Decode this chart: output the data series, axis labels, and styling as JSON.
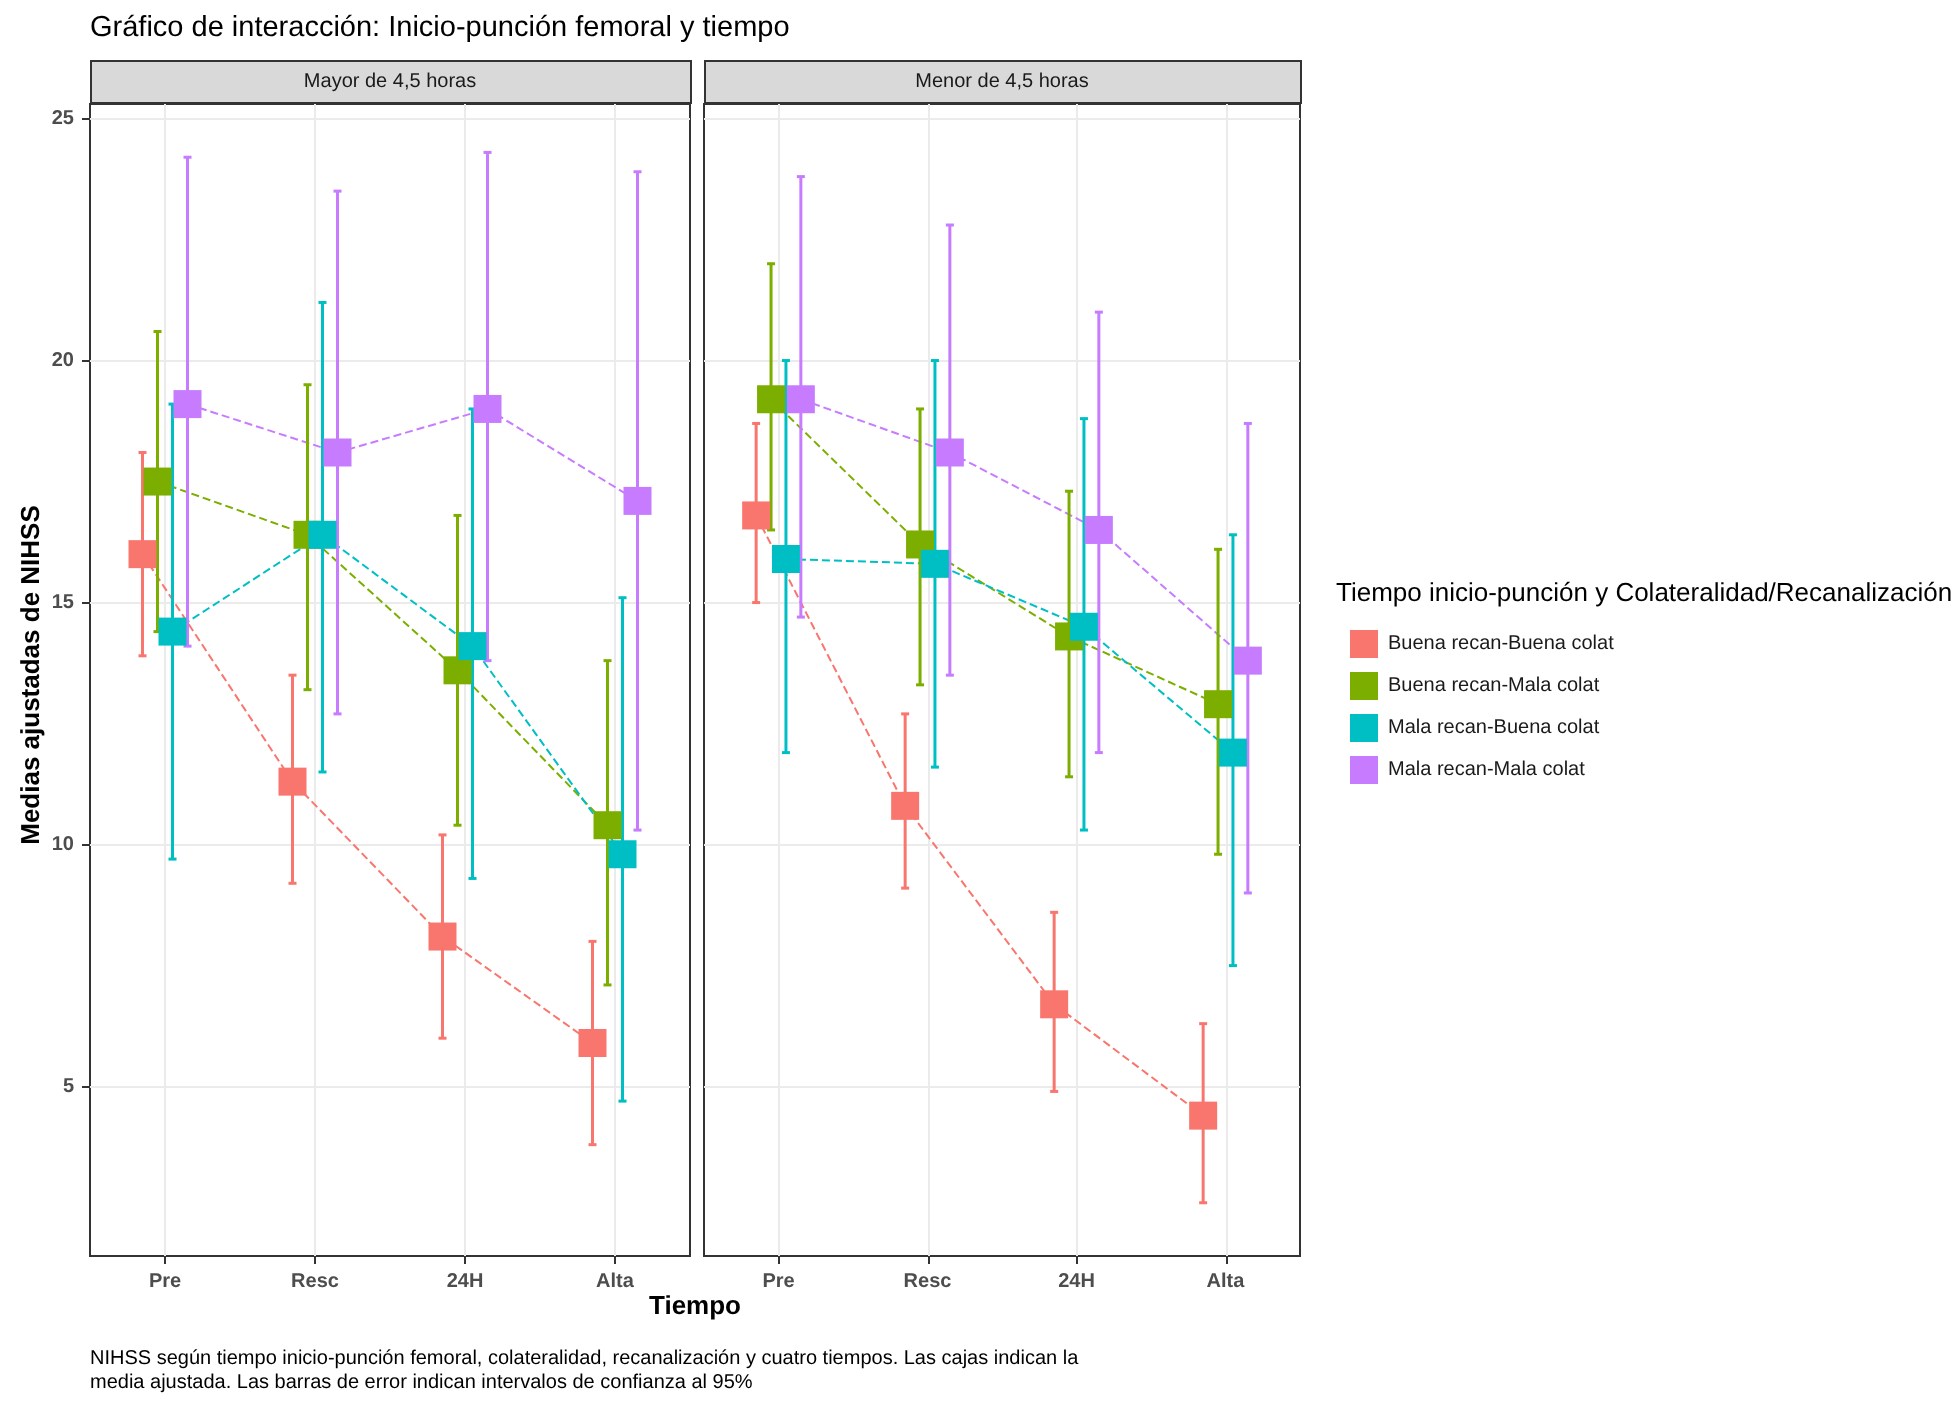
{
  "chart_data": [
    {
      "type": "line",
      "title": "Gráfico de interacción: Inicio-punción femoral y tiempo",
      "subtitle": "Mayor de 4,5 horas",
      "xlabel": "Tiempo",
      "ylabel": "Medias ajustadas de NIHSS",
      "annotations": [
        "NIHSS según tiempo inicio-punción femoral, colateralidad, recanalización y cuatro tiempos. Las cajas indican la media ajustada. Las barras de error indican intervalos de confianza al 95%"
      ],
      "categories": [
        "Pre",
        "Resc",
        "24H",
        "Alta"
      ],
      "ylim": [
        1.5,
        25.3
      ],
      "yticks": [
        5,
        10,
        15,
        20,
        25
      ],
      "grid": true,
      "marker": "square",
      "line_style": "dashed",
      "legend": false,
      "series": [
        {
          "color": "#f8766d",
          "values": [
            16.0,
            11.3,
            8.1,
            5.9
          ],
          "errors": [
            [
              13.9,
              18.1
            ],
            [
              9.2,
              13.5
            ],
            [
              6.0,
              10.2
            ],
            [
              3.8,
              8.0
            ]
          ]
        },
        {
          "color": "#7cae00",
          "values": [
            17.5,
            16.4,
            13.6,
            10.4
          ],
          "errors": [
            [
              14.4,
              20.6
            ],
            [
              13.2,
              19.5
            ],
            [
              10.4,
              16.8
            ],
            [
              7.1,
              13.8
            ]
          ]
        },
        {
          "color": "#00bfc4",
          "values": [
            14.4,
            16.4,
            14.1,
            9.8
          ],
          "errors": [
            [
              9.7,
              19.1
            ],
            [
              11.5,
              21.2
            ],
            [
              9.3,
              19.0
            ],
            [
              4.7,
              15.1
            ]
          ]
        },
        {
          "color": "#c77cff",
          "values": [
            19.1,
            18.1,
            19.0,
            17.1
          ],
          "errors": [
            [
              14.1,
              24.2
            ],
            [
              12.7,
              23.5
            ],
            [
              13.8,
              24.3
            ],
            [
              10.3,
              23.9
            ]
          ]
        }
      ]
    },
    {
      "type": "line",
      "subtitle": "Menor de 4,5 horas",
      "categories": [
        "Pre",
        "Resc",
        "24H",
        "Alta"
      ],
      "ylim": [
        1.5,
        25.3
      ],
      "yticks": [
        5,
        10,
        15,
        20,
        25
      ],
      "tick_labels": "x",
      "grid": true,
      "marker": "square",
      "line_style": "dashed",
      "legend": "right",
      "legend_title": "Tiempo inicio-punción y Colateralidad/Recanalización",
      "series": [
        {
          "name": "Buena recan-Buena colat",
          "color": "#f8766d",
          "values": [
            16.8,
            10.8,
            6.7,
            4.4
          ],
          "errors": [
            [
              15.0,
              18.7
            ],
            [
              9.1,
              12.7
            ],
            [
              4.9,
              8.6
            ],
            [
              2.6,
              6.3
            ]
          ]
        },
        {
          "name": "Buena recan-Mala colat",
          "color": "#7cae00",
          "values": [
            19.2,
            16.2,
            14.3,
            12.9
          ],
          "errors": [
            [
              16.5,
              22.0
            ],
            [
              13.3,
              19.0
            ],
            [
              11.4,
              17.3
            ],
            [
              9.8,
              16.1
            ]
          ]
        },
        {
          "name": "Mala recan-Buena colat",
          "color": "#00bfc4",
          "values": [
            15.9,
            15.8,
            14.5,
            11.9
          ],
          "errors": [
            [
              11.9,
              20.0
            ],
            [
              11.6,
              20.0
            ],
            [
              10.3,
              18.8
            ],
            [
              7.5,
              16.4
            ]
          ]
        },
        {
          "name": "Mala recan-Mala colat",
          "color": "#c77cff",
          "values": [
            19.2,
            18.1,
            16.5,
            13.8
          ],
          "errors": [
            [
              14.7,
              23.8
            ],
            [
              13.5,
              22.8
            ],
            [
              11.9,
              21.0
            ],
            [
              9.0,
              18.7
            ]
          ]
        }
      ]
    }
  ]
}
